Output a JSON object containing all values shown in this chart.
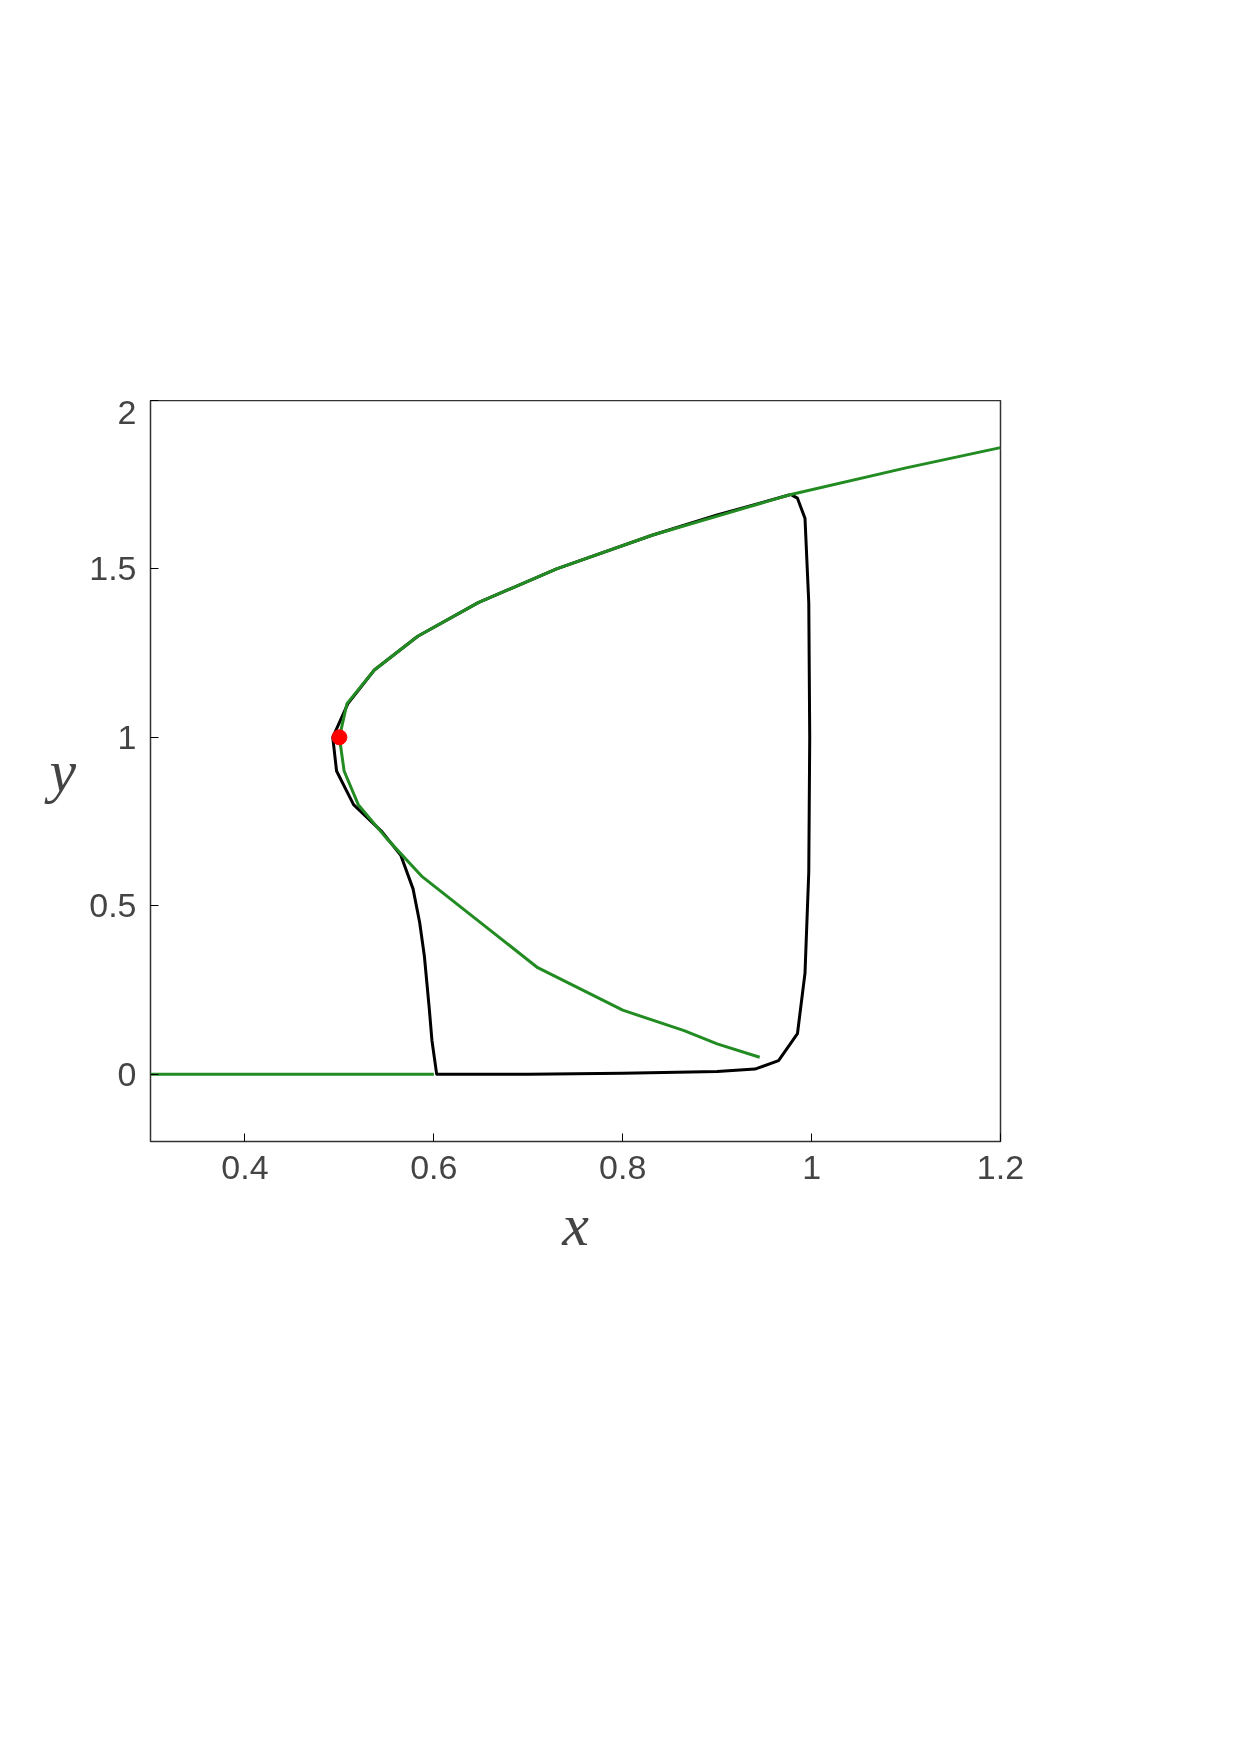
{
  "chart_data": {
    "type": "line",
    "xlabel": "x",
    "ylabel": "y",
    "xlim": [
      0.3,
      1.2
    ],
    "ylim": [
      -0.2,
      2
    ],
    "xticks": [
      0.4,
      0.6,
      0.8,
      1,
      1.2
    ],
    "yticks": [
      0,
      0.5,
      1,
      1.5,
      2
    ],
    "grid": false,
    "line_style": "solid",
    "marker": "none",
    "series": [
      {
        "color": "#000000",
        "x": [
          0.977,
          0.9,
          0.831,
          0.73,
          0.647,
          0.583,
          0.537,
          0.509,
          0.493,
          0.497,
          0.515,
          0.545,
          0.565,
          0.578,
          0.585,
          0.59,
          0.595,
          0.598,
          0.603,
          0.7,
          0.8,
          0.9,
          0.94,
          0.965,
          0.985,
          0.993,
          0.997,
          0.998,
          0.997,
          0.993,
          0.985,
          0.979
        ],
        "values": [
          1.72,
          1.66,
          1.6,
          1.5,
          1.4,
          1.3,
          1.2,
          1.1,
          1.0,
          0.9,
          0.8,
          0.72,
          0.65,
          0.55,
          0.45,
          0.35,
          0.2,
          0.1,
          0,
          0,
          0.003,
          0.008,
          0.015,
          0.04,
          0.12,
          0.3,
          0.6,
          1.0,
          1.4,
          1.65,
          1.71,
          1.719
        ]
      },
      {
        "color": "#228b22",
        "x": [
          0.3,
          0.45,
          0.6,
          null,
          0.945,
          0.9,
          0.865,
          0.8,
          0.71,
          0.587,
          0.55,
          0.52,
          0.505,
          0.5,
          0.508,
          0.537,
          0.583,
          0.647,
          0.73,
          0.831,
          0.977,
          1.1,
          1.2
        ],
        "values": [
          0,
          0,
          0,
          null,
          0.05,
          0.09,
          0.129,
          0.19,
          0.316,
          0.588,
          0.7,
          0.8,
          0.9,
          1.0,
          1.1,
          1.2,
          1.3,
          1.4,
          1.5,
          1.6,
          1.72,
          1.8,
          1.86
        ]
      },
      {
        "type": "scatter",
        "marker": "circle",
        "color": "#ff0000",
        "x": [
          0.5
        ],
        "values": [
          1.0
        ]
      }
    ]
  }
}
